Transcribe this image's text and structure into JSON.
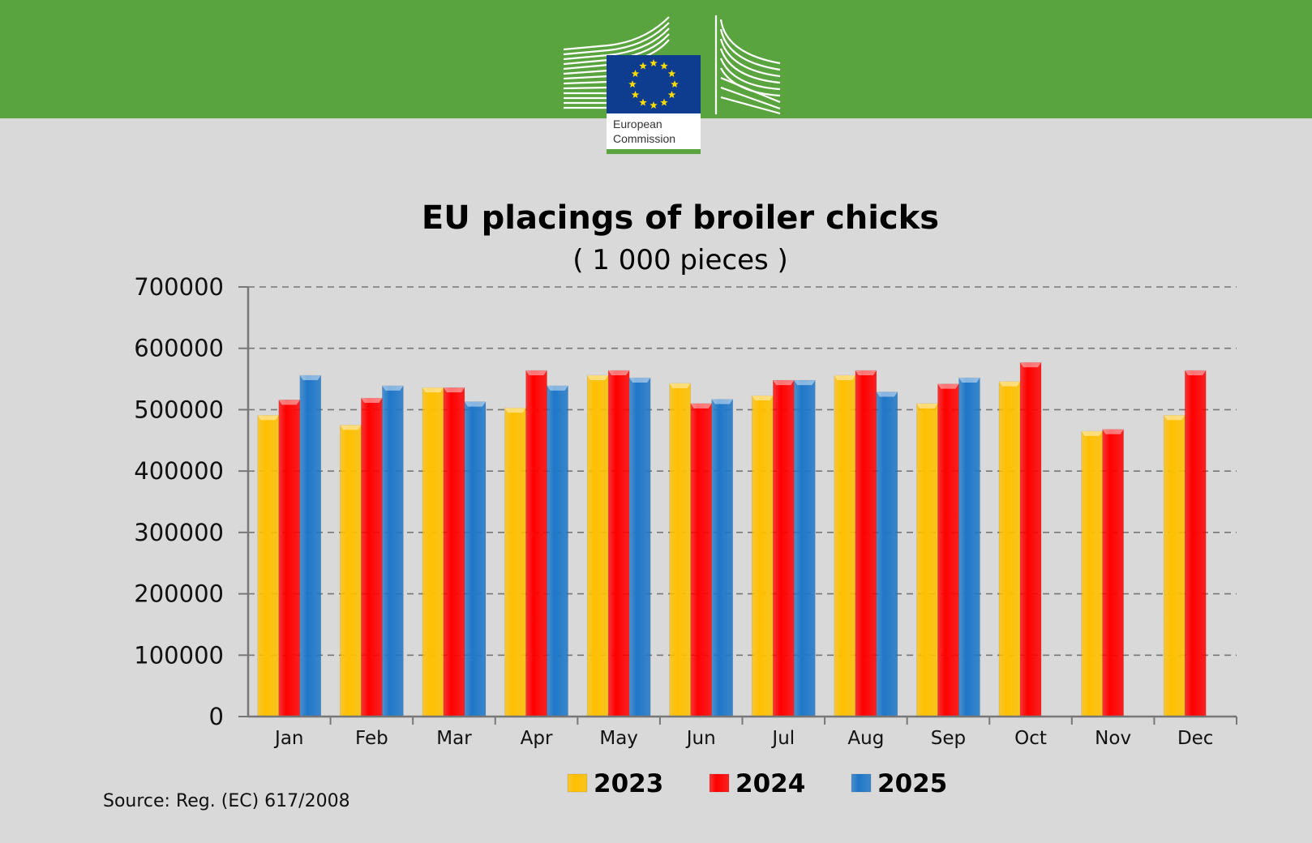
{
  "header": {
    "logo_text_line1": "European",
    "logo_text_line2": "Commission",
    "logo_name": "european-commission-logo",
    "banner_color": "#5aa43f"
  },
  "chart_data": {
    "type": "bar",
    "title": "EU placings of broiler chicks",
    "subtitle": "( 1 000 pieces )",
    "xlabel": "",
    "ylabel": "",
    "ylim": [
      0,
      700000
    ],
    "yticks": [
      0,
      100000,
      200000,
      300000,
      400000,
      500000,
      600000,
      700000
    ],
    "ytick_labels": [
      "0",
      "100000",
      "200000",
      "300000",
      "400000",
      "500000",
      "600000",
      "700000"
    ],
    "grid": "horizontal dashed",
    "legend_position": "bottom",
    "categories": [
      "Jan",
      "Feb",
      "Mar",
      "Apr",
      "May",
      "Jun",
      "Jul",
      "Aug",
      "Sep",
      "Oct",
      "Nov",
      "Dec"
    ],
    "series": [
      {
        "name": "2023",
        "color": "#ffc000",
        "values": [
          491000,
          475000,
          536000,
          503000,
          556000,
          543000,
          523000,
          556000,
          510000,
          546000,
          465000,
          491000
        ]
      },
      {
        "name": "2024",
        "color": "#ff0000",
        "values": [
          516000,
          519000,
          536000,
          564000,
          564000,
          510000,
          548000,
          564000,
          542000,
          577000,
          468000,
          564000
        ]
      },
      {
        "name": "2025",
        "color": "#1f77c8",
        "values": [
          556000,
          539000,
          513000,
          539000,
          552000,
          517000,
          548000,
          529000,
          552000,
          null,
          null,
          null
        ]
      }
    ]
  },
  "footer": {
    "source": "Source: Reg. (EC) 617/2008"
  }
}
